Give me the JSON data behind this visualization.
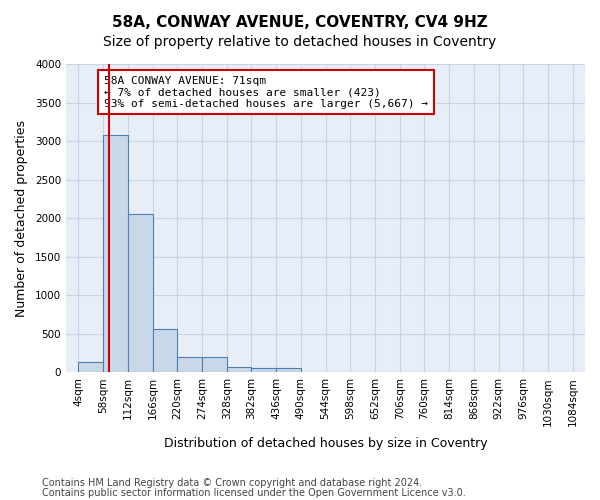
{
  "title": "58A, CONWAY AVENUE, COVENTRY, CV4 9HZ",
  "subtitle": "Size of property relative to detached houses in Coventry",
  "xlabel": "Distribution of detached houses by size in Coventry",
  "ylabel": "Number of detached properties",
  "footer_line1": "Contains HM Land Registry data © Crown copyright and database right 2024.",
  "footer_line2": "Contains public sector information licensed under the Open Government Licence v3.0.",
  "bin_edges": [
    4,
    58,
    112,
    166,
    220,
    274,
    328,
    382,
    436,
    490,
    544,
    598,
    652,
    706,
    760,
    814,
    868,
    922,
    976,
    1030,
    1084
  ],
  "bin_labels": [
    "4sqm",
    "58sqm",
    "112sqm",
    "166sqm",
    "220sqm",
    "274sqm",
    "328sqm",
    "382sqm",
    "436sqm",
    "490sqm",
    "544sqm",
    "598sqm",
    "652sqm",
    "706sqm",
    "760sqm",
    "814sqm",
    "868sqm",
    "922sqm",
    "976sqm",
    "1030sqm",
    "1084sqm"
  ],
  "bar_values": [
    140,
    3080,
    2060,
    560,
    195,
    195,
    70,
    55,
    55,
    0,
    0,
    0,
    0,
    0,
    0,
    0,
    0,
    0,
    0,
    0
  ],
  "bar_color": "#c8d8e8",
  "bar_edge_color": "#5080b0",
  "vline_x": 71,
  "annotation_text": "58A CONWAY AVENUE: 71sqm\n← 7% of detached houses are smaller (423)\n93% of semi-detached houses are larger (5,667) →",
  "annotation_box_color": "#ffffff",
  "annotation_box_edge_color": "#cc0000",
  "vline_color": "#cc0000",
  "ylim": [
    0,
    4000
  ],
  "yticks": [
    0,
    500,
    1000,
    1500,
    2000,
    2500,
    3000,
    3500,
    4000
  ],
  "grid_color": "#c8d4e4",
  "background_color": "#e8eef8",
  "title_fontsize": 11,
  "subtitle_fontsize": 10,
  "axis_label_fontsize": 9,
  "tick_fontsize": 7.5,
  "annotation_fontsize": 8,
  "footer_fontsize": 7
}
